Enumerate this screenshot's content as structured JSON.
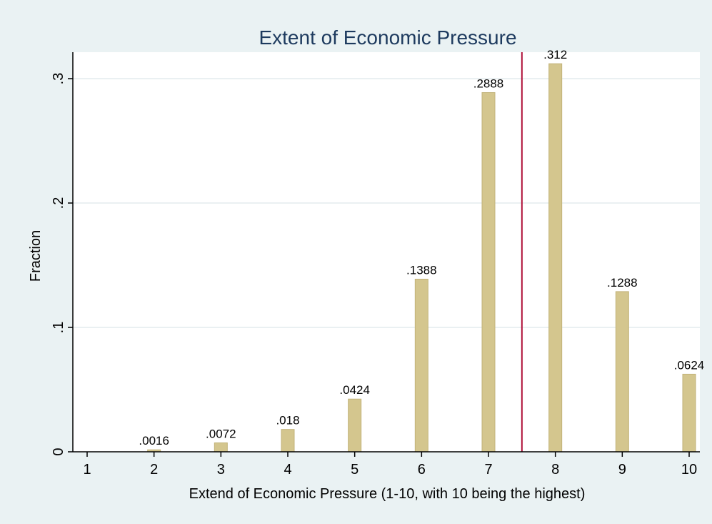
{
  "chart_data": {
    "type": "bar",
    "title": "Extent of Economic Pressure",
    "xlabel": "Extend of Economic Pressure (1-10, with 10 being the highest)",
    "ylabel": "Fraction",
    "x": [
      2,
      3,
      4,
      5,
      6,
      7,
      8,
      9,
      10
    ],
    "values": [
      0.0016,
      0.0072,
      0.018,
      0.0424,
      0.1388,
      0.2888,
      0.312,
      0.1288,
      0.0624
    ],
    "value_labels": [
      ".0016",
      ".0072",
      ".018",
      ".0424",
      ".1388",
      ".2888",
      ".312",
      ".1288",
      ".0624"
    ],
    "xticks": [
      1,
      2,
      3,
      4,
      5,
      6,
      7,
      8,
      9,
      10
    ],
    "xtick_labels": [
      "1",
      "2",
      "3",
      "4",
      "5",
      "6",
      "7",
      "8",
      "9",
      "10"
    ],
    "yticks": [
      0,
      0.1,
      0.2,
      0.3
    ],
    "ytick_labels": [
      "0",
      ".1",
      ".2",
      ".3"
    ],
    "xlim": [
      1,
      10
    ],
    "ylim": [
      0,
      0.32
    ],
    "reference_line_x": 7.5,
    "grid": true,
    "colors": {
      "bar_fill": "#d4c68e",
      "bar_edge": "#c2b37a",
      "reference_line": "#b0123a",
      "title": "#1d3a5e",
      "background": "#eaf2f3",
      "plot_background": "#ffffff",
      "grid": "#e4ecee",
      "axis": "#000000"
    }
  }
}
